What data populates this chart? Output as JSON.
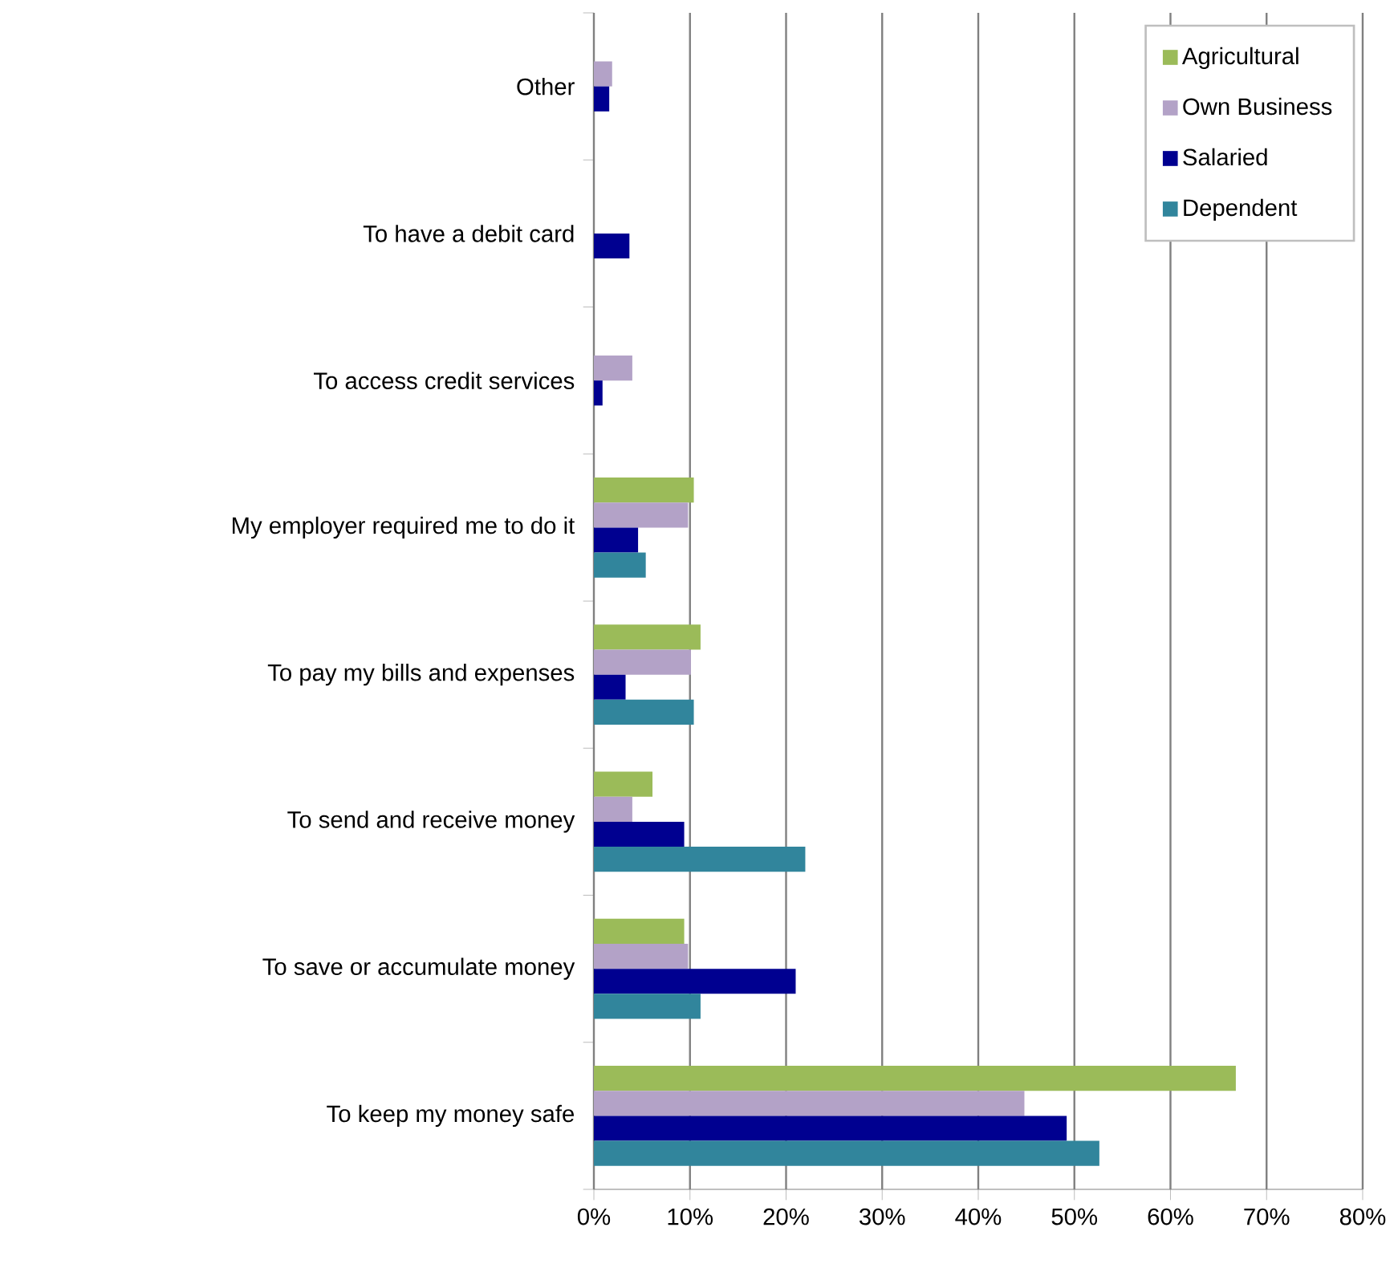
{
  "chart_data": {
    "type": "bar",
    "orientation": "horizontal",
    "categories": [
      "Other",
      "To have a debit card",
      "To access credit services",
      "My employer required me to do it",
      "To pay my bills and expenses",
      "To send and receive money",
      "To save or accumulate money",
      "To keep my money safe"
    ],
    "series": [
      {
        "name": "Agricultural",
        "color": "#9bbb59",
        "values": [
          null,
          null,
          null,
          10.4,
          11.1,
          6.1,
          9.4,
          66.8
        ]
      },
      {
        "name": "Own Business",
        "color": "#b3a2c7",
        "values": [
          1.9,
          null,
          4.0,
          9.8,
          10.1,
          4.0,
          9.8,
          44.8
        ]
      },
      {
        "name": "Salaried",
        "color": "#000090",
        "values": [
          1.6,
          3.7,
          0.9,
          4.6,
          3.3,
          9.4,
          21.0,
          49.2
        ]
      },
      {
        "name": "Dependent",
        "color": "#31859c",
        "values": [
          null,
          null,
          null,
          5.4,
          10.4,
          22.0,
          11.1,
          52.6
        ]
      }
    ],
    "xlim": [
      0,
      80
    ],
    "xticks": [
      {
        "value": 0,
        "label": "0%"
      },
      {
        "value": 10,
        "label": "10%"
      },
      {
        "value": 20,
        "label": "20%"
      },
      {
        "value": 30,
        "label": "30%"
      },
      {
        "value": 40,
        "label": "40%"
      },
      {
        "value": 50,
        "label": "50%"
      },
      {
        "value": 60,
        "label": "60%"
      },
      {
        "value": 70,
        "label": "70%"
      },
      {
        "value": 80,
        "label": "80%"
      }
    ],
    "grid": "x",
    "legend": "top right"
  }
}
